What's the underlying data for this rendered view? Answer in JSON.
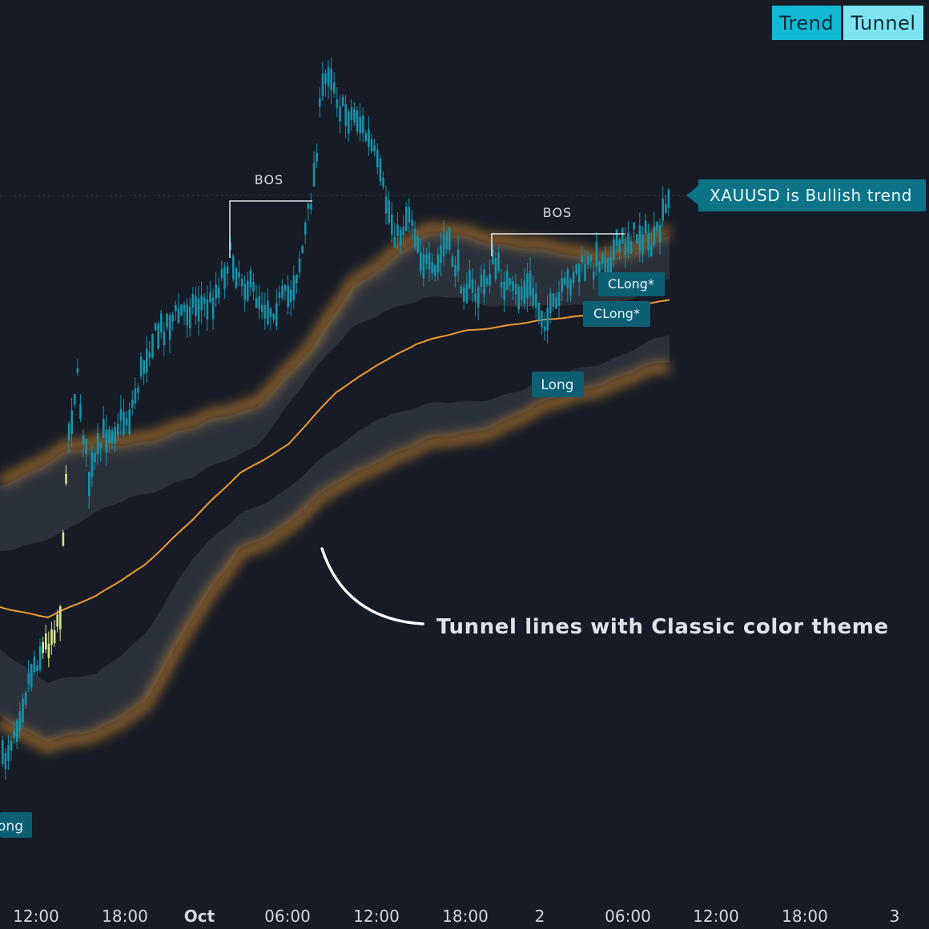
{
  "toolbar": {
    "trend_label": "Trend",
    "tunnel_label": "Tunnel"
  },
  "trend_label": {
    "text": "XAUUSD is Bullish trend"
  },
  "annotation": {
    "text": "Tunnel lines with Classic color theme"
  },
  "colors": {
    "background": "#161b26",
    "candle": "#1593aa",
    "candle_highlight": "#d8e68a",
    "tunnel_orange": "#f29a2e",
    "tunnel_gray": "#9aa7ad",
    "signal_label": "#0d5f73"
  },
  "icons": {
    "trend_pointer": "triangle-left-icon",
    "annotation_arrow": "curved-arrow-icon"
  },
  "chart_data": {
    "type": "candlestick",
    "x_ticks": [
      {
        "label": "12:00",
        "bold": false
      },
      {
        "label": "18:00",
        "bold": false
      },
      {
        "label": "Oct",
        "bold": true
      },
      {
        "label": "06:00",
        "bold": false
      },
      {
        "label": "12:00",
        "bold": false
      },
      {
        "label": "18:00",
        "bold": false
      },
      {
        "label": "2",
        "bold": false
      },
      {
        "label": "06:00",
        "bold": false
      },
      {
        "label": "12:00",
        "bold": false
      },
      {
        "label": "18:00",
        "bold": false
      },
      {
        "label": "3",
        "bold": false
      }
    ],
    "bos_labels": [
      "BOS",
      "BOS"
    ],
    "signals": [
      "Long",
      "Long",
      "CLong*",
      "CLong*"
    ]
  }
}
